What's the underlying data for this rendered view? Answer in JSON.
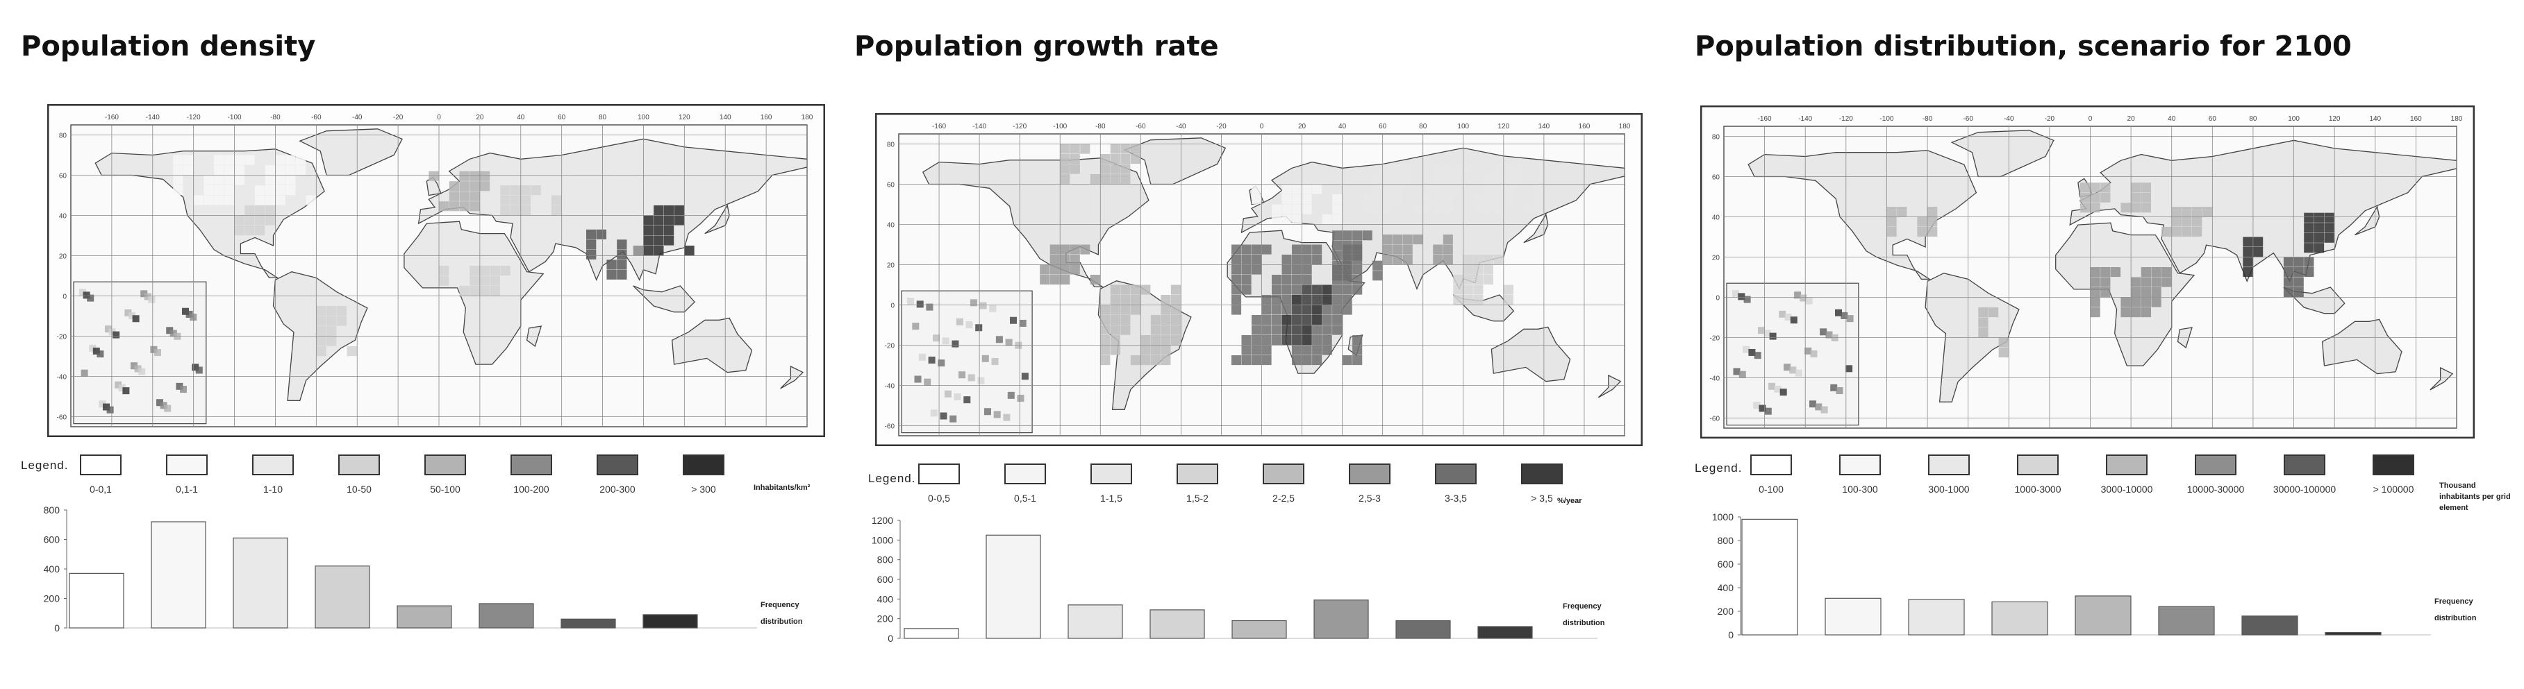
{
  "panels": [
    {
      "id": "density",
      "title": "Population density",
      "legend_word": "Legend.",
      "map": {
        "top_ticks": [
          "-160",
          "-140",
          "-120",
          "-100",
          "-80",
          "-60",
          "-40",
          "-20",
          "0",
          "20",
          "40",
          "60",
          "80",
          "100",
          "120",
          "140",
          "160",
          "180"
        ],
        "side_ticks": [
          "80",
          "60",
          "40",
          "20",
          "0",
          "-20",
          "-40",
          "-60"
        ]
      },
      "classes": [
        "0-0,1",
        "0,1-1",
        "1-10",
        "10-50",
        "50-100",
        "100-200",
        "200-300",
        "> 300"
      ],
      "class_colors": [
        "#ffffff",
        "#f7f7f7",
        "#e9e9e9",
        "#d2d2d2",
        "#b3b3b3",
        "#8a8a8a",
        "#585858",
        "#2e2e2e"
      ],
      "unit": "Inhabitants/km²",
      "chart_data": {
        "type": "bar",
        "categories": [
          "0-0,1",
          "0,1-1",
          "1-10",
          "10-50",
          "50-100",
          "100-200",
          "200-300",
          "> 300"
        ],
        "values": [
          370,
          720,
          610,
          420,
          150,
          165,
          60,
          90
        ],
        "yticks": [
          "800",
          "600",
          "400",
          "200",
          "0"
        ],
        "ylim": [
          0,
          800
        ],
        "label_line1": "Frequency",
        "label_line2": "distribution"
      }
    },
    {
      "id": "growth",
      "title": "Population growth rate",
      "legend_word": "Legend.",
      "map": {
        "top_ticks": [
          "-160",
          "-140",
          "-120",
          "-100",
          "-80",
          "-60",
          "-40",
          "-20",
          "0",
          "20",
          "40",
          "60",
          "80",
          "100",
          "120",
          "140",
          "160",
          "180"
        ],
        "side_ticks": [
          "80",
          "60",
          "40",
          "20",
          "0",
          "-20",
          "-40",
          "-60"
        ]
      },
      "classes": [
        "0-0,5",
        "0,5-1",
        "1-1,5",
        "1,5-2",
        "2-2,5",
        "2,5-3",
        "3-3,5",
        "> 3,5"
      ],
      "class_colors": [
        "#ffffff",
        "#f4f4f4",
        "#e6e6e6",
        "#d4d4d4",
        "#bcbcbc",
        "#9a9a9a",
        "#6e6e6e",
        "#3c3c3c"
      ],
      "unit": "%/year",
      "chart_data": {
        "type": "bar",
        "categories": [
          "0-0,5",
          "0,5-1",
          "1-1,5",
          "1,5-2",
          "2-2,5",
          "2,5-3",
          "3-3,5",
          "> 3,5"
        ],
        "values": [
          100,
          1050,
          340,
          290,
          180,
          390,
          180,
          120
        ],
        "yticks": [
          "1200",
          "1000",
          "800",
          "600",
          "400",
          "200",
          "0"
        ],
        "ylim": [
          0,
          1200
        ],
        "label_line1": "Frequency",
        "label_line2": "distribution"
      }
    },
    {
      "id": "distribution",
      "title": "Population distribution, scenario for 2100",
      "legend_word": "Legend.",
      "map": {
        "top_ticks": [
          "-160",
          "-140",
          "-120",
          "-100",
          "-80",
          "-60",
          "-40",
          "-20",
          "0",
          "20",
          "40",
          "60",
          "80",
          "100",
          "120",
          "140",
          "160",
          "180"
        ],
        "side_ticks": [
          "80",
          "60",
          "40",
          "20",
          "0",
          "-20",
          "-40",
          "-60"
        ]
      },
      "classes": [
        "0-100",
        "100-300",
        "300-1000",
        "1000-3000",
        "3000-10000",
        "10000-30000",
        "30000-100000",
        "> 100000"
      ],
      "class_colors": [
        "#ffffff",
        "#f6f6f6",
        "#e8e8e8",
        "#d6d6d6",
        "#b8b8b8",
        "#8e8e8e",
        "#5e5e5e",
        "#303030"
      ],
      "unit": "Thousand inhabitants per grid element",
      "chart_data": {
        "type": "bar",
        "categories": [
          "0-100",
          "100-300",
          "300-1000",
          "1000-3000",
          "3000-10000",
          "10000-30000",
          "30000-100000",
          "> 100000"
        ],
        "values": [
          980,
          310,
          300,
          280,
          330,
          240,
          160,
          20
        ],
        "yticks": [
          "1000",
          "800",
          "600",
          "400",
          "200",
          "0"
        ],
        "ylim": [
          0,
          1000
        ],
        "label_line1": "Frequency",
        "label_line2": "distribution"
      }
    }
  ]
}
